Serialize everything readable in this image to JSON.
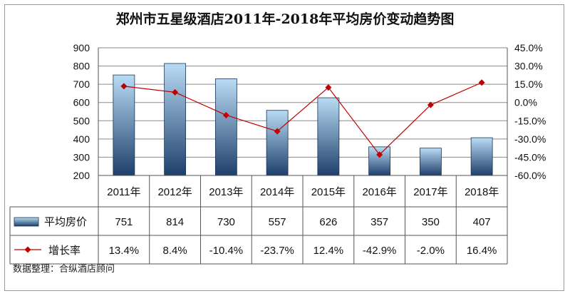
{
  "chart_data": {
    "type": "bar+line",
    "title": "郑州市五星级酒店2011年-2018年平均房价变动趋势图",
    "categories": [
      "2011年",
      "2012年",
      "2013年",
      "2014年",
      "2015年",
      "2016年",
      "2017年",
      "2018年"
    ],
    "series": [
      {
        "name": "平均房价",
        "type": "bar",
        "axis": "left",
        "values": [
          751,
          814,
          730,
          557,
          626,
          357,
          350,
          407
        ],
        "labels": [
          "751",
          "814",
          "730",
          "557",
          "626",
          "357",
          "350",
          "407"
        ]
      },
      {
        "name": "增长率",
        "type": "line",
        "axis": "right",
        "values": [
          13.4,
          8.4,
          -10.4,
          -23.7,
          12.4,
          -42.9,
          -2.0,
          16.4
        ],
        "labels": [
          "13.4%",
          "8.4%",
          "-10.4%",
          "-23.7%",
          "12.4%",
          "-42.9%",
          "-2.0%",
          "16.4%"
        ]
      }
    ],
    "y_left": {
      "min": 200,
      "max": 900,
      "ticks": [
        "200",
        "300",
        "400",
        "500",
        "600",
        "700",
        "800",
        "900"
      ]
    },
    "y_right": {
      "min": -60,
      "max": 45,
      "ticks": [
        "-60.0%",
        "-45.0%",
        "-30.0%",
        "-15.0%",
        "0.0%",
        "15.0%",
        "30.0%",
        "45.0%"
      ]
    },
    "grid": true,
    "legend": "data-table-rows",
    "colors": {
      "bar_top": "#b9dcf5",
      "bar_bottom": "#1e3f6a",
      "line": "#c00000",
      "grid": "#8a8a8a"
    }
  },
  "source_note": "数据整理：合纵酒店顾问"
}
